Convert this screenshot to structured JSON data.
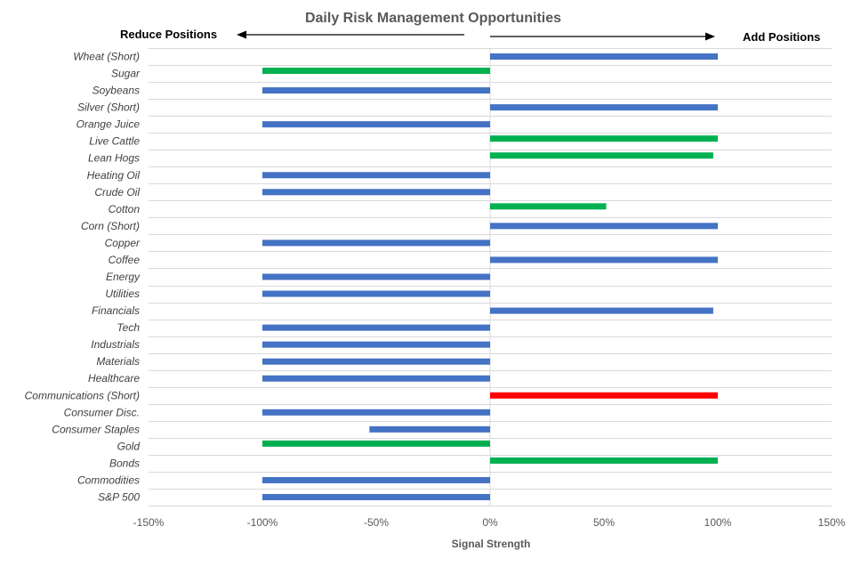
{
  "chart_data": {
    "type": "bar",
    "orientation": "horizontal",
    "title": "Daily Risk Management Opportunities",
    "annotations": {
      "left": "Reduce Positions",
      "right": "Add Positions"
    },
    "xlabel": "Signal Strength",
    "xlim": [
      -150,
      150
    ],
    "x_ticks": [
      -150,
      -100,
      -50,
      0,
      50,
      100,
      150
    ],
    "x_tick_labels": [
      "-150%",
      "-100%",
      "-50%",
      "0%",
      "50%",
      "100%",
      "150%"
    ],
    "grid": true,
    "categories": [
      "Wheat (Short)",
      "Sugar",
      "Soybeans",
      "Silver (Short)",
      "Orange Juice",
      "Live Cattle",
      "Lean Hogs",
      "Heating Oil",
      "Crude Oil",
      "Cotton",
      "Corn (Short)",
      "Copper",
      "Coffee",
      "Energy",
      "Utilities",
      "Financials",
      "Tech",
      "Industrials",
      "Materials",
      "Healthcare",
      "Communications (Short)",
      "Consumer Disc.",
      "Consumer Staples",
      "Gold",
      "Bonds",
      "Commodities",
      "S&P 500"
    ],
    "series": [
      {
        "color": "#4472C4",
        "values": [
          100,
          null,
          -100,
          100,
          -100,
          null,
          null,
          -100,
          -100,
          null,
          100,
          -100,
          100,
          -100,
          -100,
          98,
          -100,
          -100,
          -100,
          -100,
          null,
          -100,
          -53,
          null,
          null,
          -100,
          -100
        ]
      },
      {
        "color": "#00B050",
        "values": [
          null,
          -100,
          null,
          null,
          null,
          100,
          98,
          null,
          null,
          51,
          null,
          null,
          null,
          null,
          null,
          null,
          null,
          null,
          null,
          null,
          null,
          null,
          null,
          -100,
          100,
          null,
          null
        ]
      },
      {
        "color": "#FF0000",
        "values": [
          null,
          null,
          null,
          null,
          null,
          null,
          null,
          null,
          null,
          null,
          null,
          null,
          null,
          null,
          null,
          null,
          null,
          null,
          null,
          null,
          100,
          null,
          null,
          null,
          null,
          null,
          null
        ]
      }
    ]
  }
}
